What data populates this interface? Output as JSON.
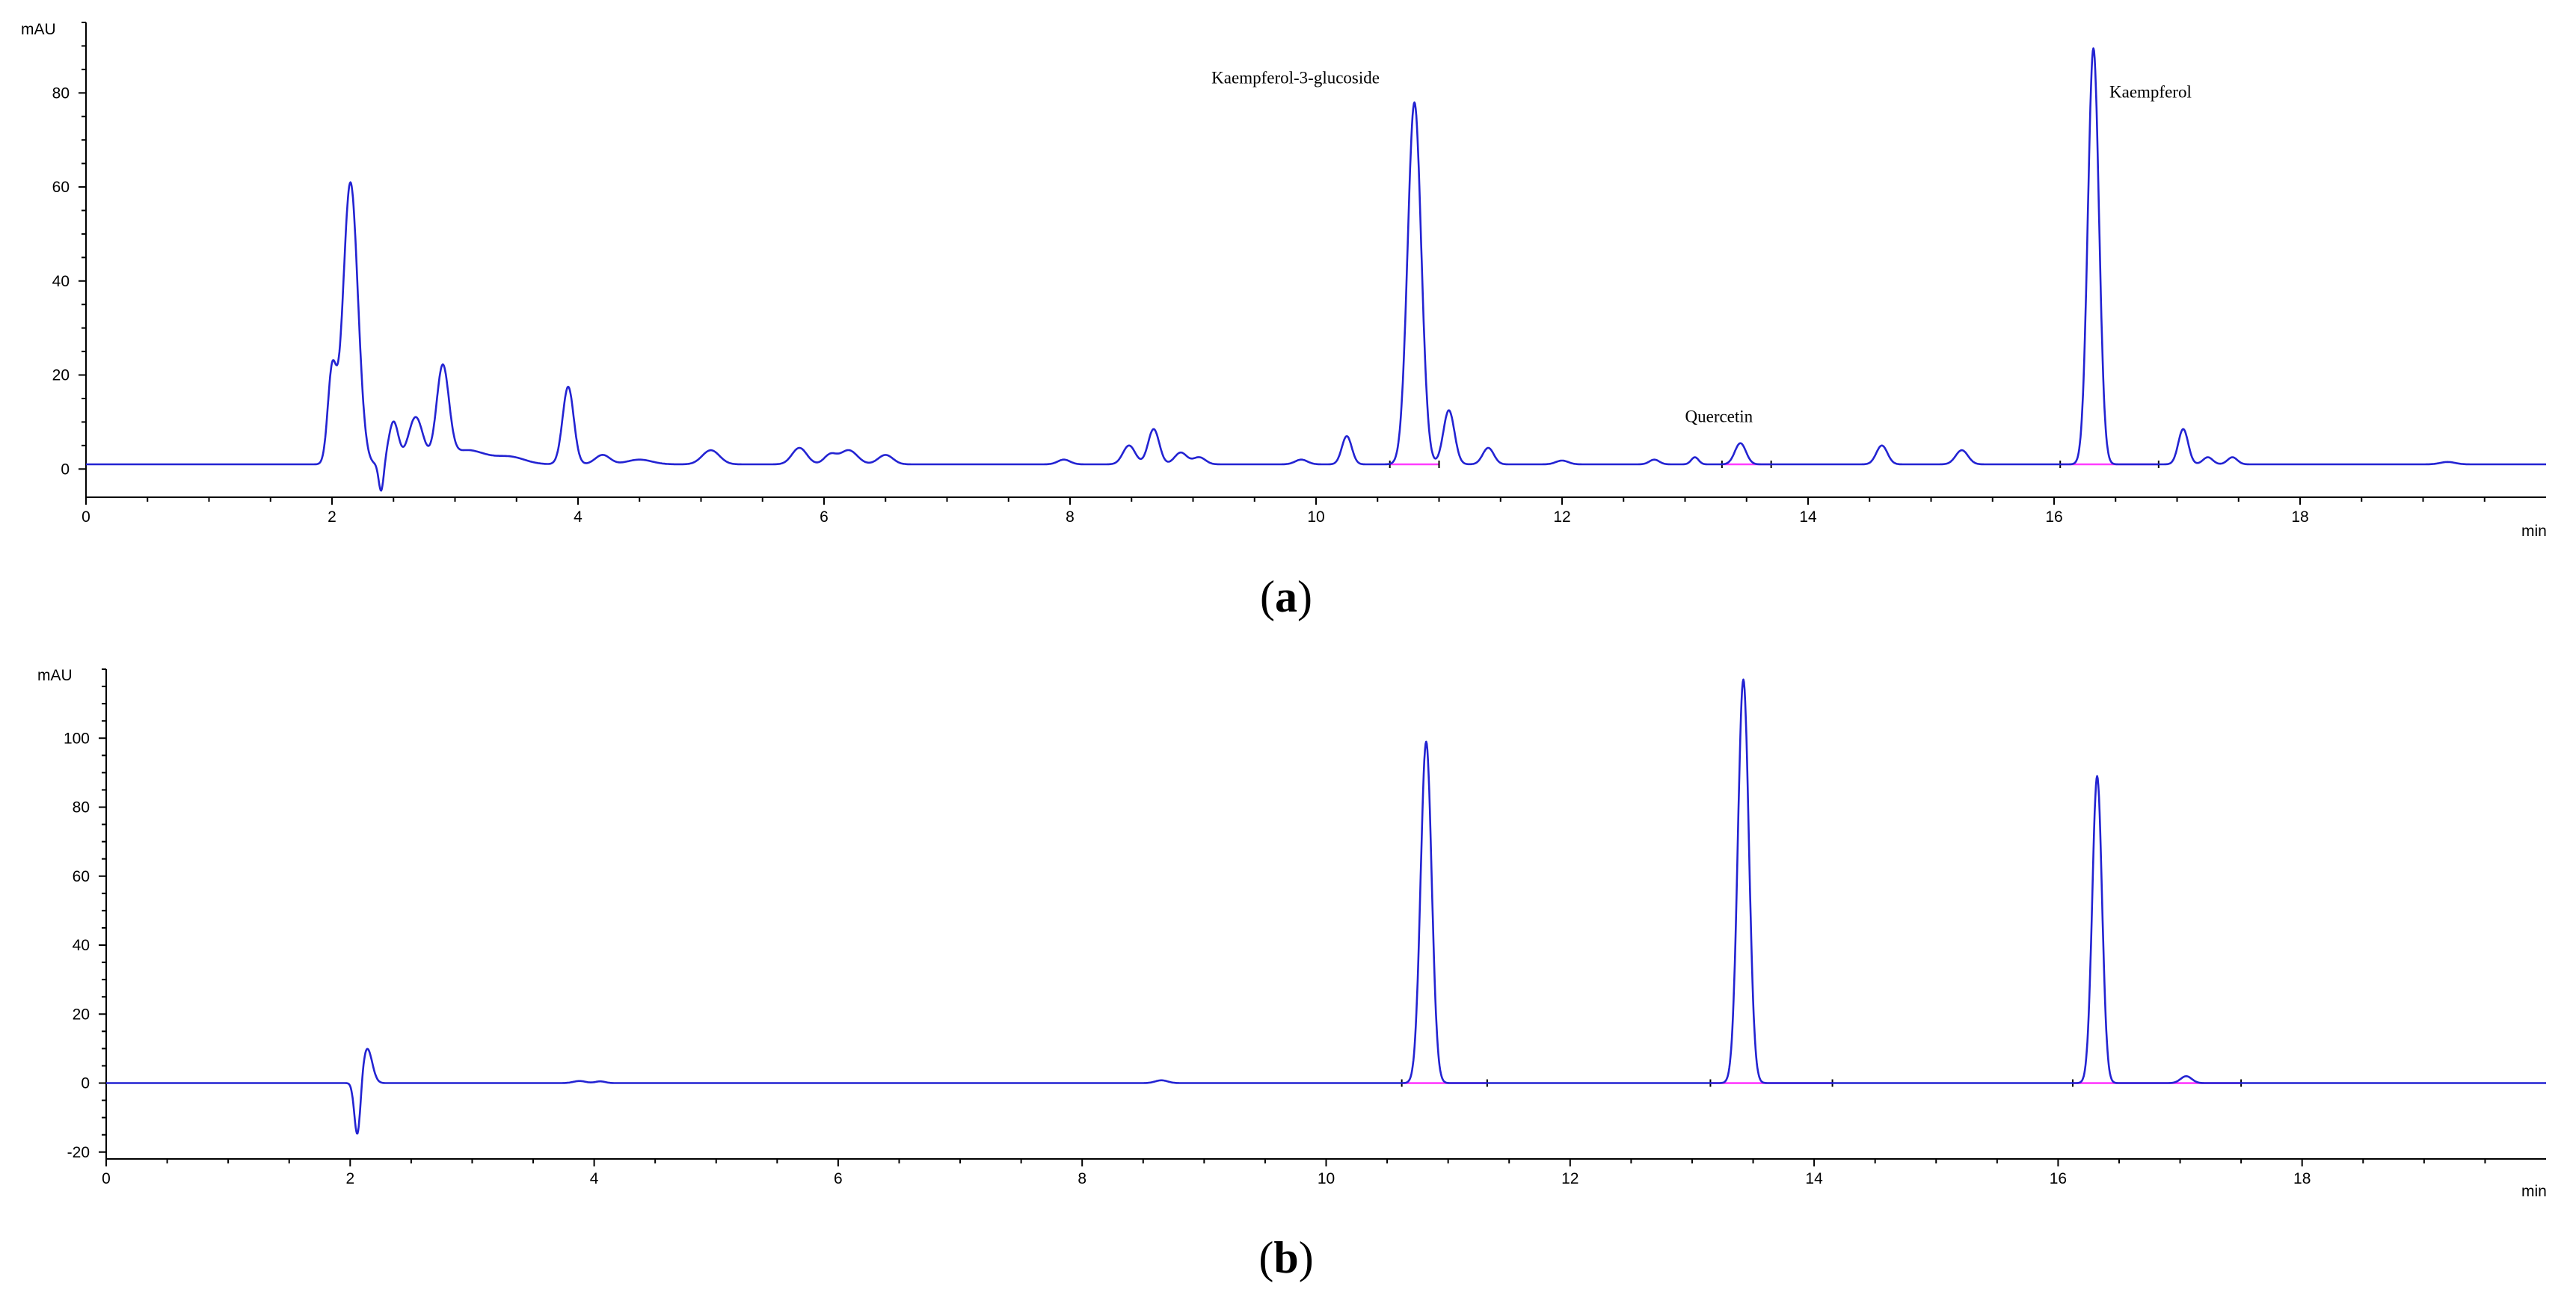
{
  "chart_data": [
    {
      "type": "line",
      "panel_caption": "a",
      "caption_open": "(",
      "caption_close": ")",
      "ylabel": "mAU",
      "xlabel": "min",
      "xlim": [
        0,
        20
      ],
      "ylim": [
        -6,
        95
      ],
      "x_ticks": [
        0,
        2,
        4,
        6,
        8,
        10,
        12,
        14,
        16,
        18
      ],
      "y_ticks": [
        0,
        20,
        40,
        60,
        80
      ],
      "color": "#2323d2",
      "baseline_color": "#ff3cff",
      "baseline": 1.0,
      "peaks": [
        {
          "rt": 2.0,
          "height": 19,
          "width": 0.035
        },
        {
          "rt": 2.15,
          "height": 60,
          "width": 0.06
        },
        {
          "rt": 2.4,
          "height": -6,
          "width": 0.02
        },
        {
          "rt": 2.5,
          "height": 9,
          "width": 0.04
        },
        {
          "rt": 2.68,
          "height": 10,
          "width": 0.06
        },
        {
          "rt": 2.9,
          "height": 20,
          "width": 0.05
        },
        {
          "rt": 3.1,
          "height": 3,
          "width": 0.15
        },
        {
          "rt": 3.45,
          "height": 1.5,
          "width": 0.12
        },
        {
          "rt": 3.92,
          "height": 16.5,
          "width": 0.045
        },
        {
          "rt": 4.2,
          "height": 2,
          "width": 0.06
        },
        {
          "rt": 4.5,
          "height": 1,
          "width": 0.1
        },
        {
          "rt": 5.08,
          "height": 3,
          "width": 0.07
        },
        {
          "rt": 5.8,
          "height": 3.5,
          "width": 0.06
        },
        {
          "rt": 6.05,
          "height": 2,
          "width": 0.05
        },
        {
          "rt": 6.2,
          "height": 3,
          "width": 0.07
        },
        {
          "rt": 6.5,
          "height": 2,
          "width": 0.06
        },
        {
          "rt": 7.95,
          "height": 1,
          "width": 0.05
        },
        {
          "rt": 8.48,
          "height": 4,
          "width": 0.05
        },
        {
          "rt": 8.68,
          "height": 7.5,
          "width": 0.045
        },
        {
          "rt": 8.9,
          "height": 2.5,
          "width": 0.05
        },
        {
          "rt": 9.05,
          "height": 1.5,
          "width": 0.05
        },
        {
          "rt": 9.88,
          "height": 1,
          "width": 0.05
        },
        {
          "rt": 10.25,
          "height": 6,
          "width": 0.04
        },
        {
          "rt": 10.8,
          "height": 77,
          "width": 0.055
        },
        {
          "rt": 11.08,
          "height": 11.5,
          "width": 0.045
        },
        {
          "rt": 11.4,
          "height": 3.5,
          "width": 0.045
        },
        {
          "rt": 12.0,
          "height": 0.8,
          "width": 0.05
        },
        {
          "rt": 12.75,
          "height": 1,
          "width": 0.04
        },
        {
          "rt": 13.08,
          "height": 1.5,
          "width": 0.03
        },
        {
          "rt": 13.45,
          "height": 4.5,
          "width": 0.045
        },
        {
          "rt": 14.6,
          "height": 4,
          "width": 0.045
        },
        {
          "rt": 15.25,
          "height": 3,
          "width": 0.05
        },
        {
          "rt": 16.32,
          "height": 88.5,
          "width": 0.045
        },
        {
          "rt": 17.05,
          "height": 7.5,
          "width": 0.04
        },
        {
          "rt": 17.25,
          "height": 1.5,
          "width": 0.04
        },
        {
          "rt": 17.45,
          "height": 1.5,
          "width": 0.04
        },
        {
          "rt": 19.2,
          "height": 0.5,
          "width": 0.06
        }
      ],
      "annotations": [
        {
          "text": "Kaempferol-3-glucoside",
          "x": 9.15,
          "y": 82
        },
        {
          "text": "Quercetin",
          "x": 13.0,
          "y": 10
        },
        {
          "text": "Kaempferol",
          "x": 16.45,
          "y": 79
        }
      ],
      "integration_baselines": [
        [
          10.6,
          11.0
        ],
        [
          13.3,
          13.7
        ],
        [
          16.05,
          16.85
        ]
      ]
    },
    {
      "type": "line",
      "panel_caption": "b",
      "caption_open": "(",
      "caption_close": ")",
      "ylabel": "mAU",
      "xlabel": "min",
      "xlim": [
        0,
        20
      ],
      "ylim": [
        -22,
        120
      ],
      "x_ticks": [
        0,
        2,
        4,
        6,
        8,
        10,
        12,
        14,
        16,
        18
      ],
      "y_ticks": [
        -20,
        0,
        20,
        40,
        60,
        80,
        100
      ],
      "color": "#2323d2",
      "baseline_color": "#ff3cff",
      "baseline": 0.0,
      "peaks": [
        {
          "rt": 2.06,
          "height": -16,
          "width": 0.025
        },
        {
          "rt": 2.14,
          "height": 10,
          "width": 0.04
        },
        {
          "rt": 3.88,
          "height": 0.6,
          "width": 0.05
        },
        {
          "rt": 4.05,
          "height": 0.5,
          "width": 0.04
        },
        {
          "rt": 8.65,
          "height": 0.8,
          "width": 0.05
        },
        {
          "rt": 10.82,
          "height": 99,
          "width": 0.045
        },
        {
          "rt": 13.42,
          "height": 117,
          "width": 0.045
        },
        {
          "rt": 16.32,
          "height": 89,
          "width": 0.04
        },
        {
          "rt": 17.05,
          "height": 2,
          "width": 0.045
        }
      ],
      "annotations": [],
      "integration_baselines": [
        [
          10.62,
          11.32
        ],
        [
          13.15,
          14.15
        ],
        [
          16.12,
          17.5
        ]
      ]
    }
  ]
}
